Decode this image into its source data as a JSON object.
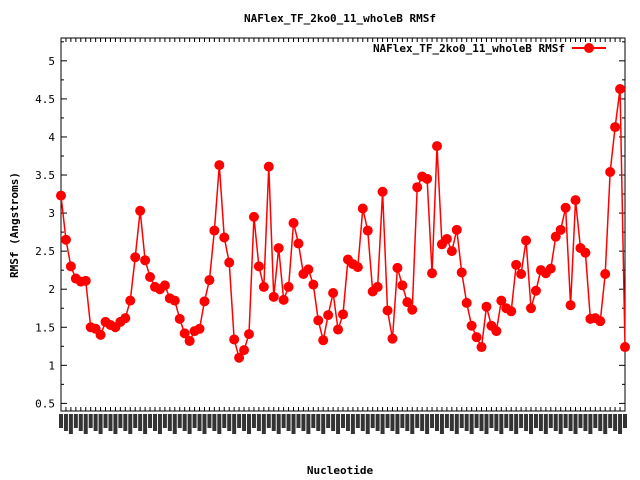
{
  "chart_data": {
    "type": "line",
    "title": "NAFlex_TF_2ko0_11_wholeB RMSf",
    "xlabel": "Nucleotide",
    "ylabel": "RMSf (Angstroms)",
    "legend": {
      "label": "NAFlex_TF_2ko0_11_wholeB RMSf",
      "position": "top-right"
    },
    "series_color": "#ff0000",
    "ylim": [
      0.4,
      5.3
    ],
    "yticks": [
      0.5,
      1,
      1.5,
      2,
      2.5,
      3,
      3.5,
      4,
      4.5,
      5
    ],
    "ytick_labels": [
      "0.5",
      "1",
      "1.5",
      "2",
      "2.5",
      "3",
      "3.5",
      "4",
      "4.5",
      "5"
    ],
    "grid": false,
    "x_tick_labels_note": "dense, overlapping rotated residue labels (illegible)",
    "series": [
      {
        "values": [
          3.23,
          2.65,
          2.3,
          2.14,
          2.1,
          2.11,
          1.5,
          1.48,
          1.4,
          1.57,
          1.53,
          1.5,
          1.57,
          1.62,
          1.85,
          2.42,
          3.03,
          2.38,
          2.16,
          2.03,
          2.0,
          2.05,
          1.88,
          1.85,
          1.61,
          1.42,
          1.32,
          1.45,
          1.48,
          1.84,
          2.12,
          2.77,
          3.63,
          2.68,
          2.35,
          1.34,
          1.1,
          1.2,
          1.41,
          2.95,
          2.3,
          2.03,
          3.61,
          1.9,
          2.54,
          1.86,
          2.03,
          2.87,
          2.6,
          2.2,
          2.26,
          2.06,
          1.59,
          1.33,
          1.66,
          1.95,
          1.47,
          1.67,
          2.39,
          2.33,
          2.29,
          3.06,
          2.77,
          1.97,
          2.03,
          3.28,
          1.72,
          1.35,
          2.28,
          2.05,
          1.83,
          1.73,
          3.34,
          3.48,
          3.45,
          2.21,
          3.88,
          2.59,
          2.66,
          2.5,
          2.78,
          2.22,
          1.82,
          1.52,
          1.37,
          1.24,
          1.77,
          1.52,
          1.45,
          1.85,
          1.75,
          1.71,
          2.32,
          2.2,
          2.64,
          1.75,
          1.98,
          2.25,
          2.21,
          2.27,
          2.69,
          2.78,
          3.07,
          1.79,
          3.17,
          2.54,
          2.48,
          1.61,
          1.62,
          1.58,
          2.2,
          3.54,
          4.13,
          4.63,
          1.24
        ]
      }
    ]
  }
}
